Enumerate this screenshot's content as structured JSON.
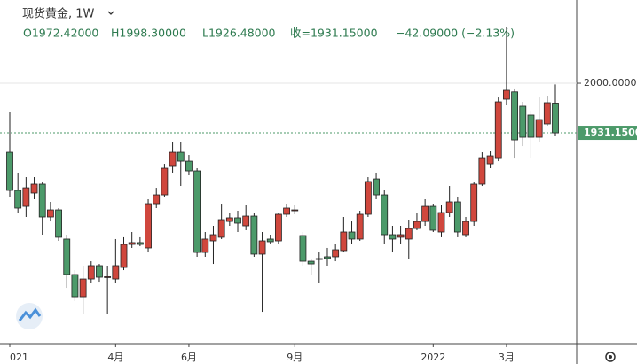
{
  "chart_data": {
    "type": "candlestick",
    "title": "现货黄金, 1W",
    "header": {
      "open": {
        "value": 1972.42,
        "label": "O1972.42000"
      },
      "high": {
        "value": 1998.3,
        "label": "H1998.30000"
      },
      "low": {
        "value": 1926.48,
        "label": "L1926.48000"
      },
      "close": {
        "value": 1931.15,
        "label": "收=1931.15000"
      },
      "change": {
        "value": -42.09,
        "label": "−42.09000 (−2.13%)"
      }
    },
    "categories": [
      "021",
      null,
      null,
      null,
      null,
      null,
      null,
      null,
      null,
      null,
      null,
      null,
      null,
      "4月",
      null,
      null,
      null,
      null,
      null,
      null,
      null,
      null,
      "6月",
      null,
      null,
      null,
      null,
      null,
      null,
      null,
      null,
      null,
      null,
      null,
      null,
      "9月",
      null,
      null,
      null,
      null,
      null,
      null,
      null,
      null,
      null,
      null,
      null,
      null,
      null,
      null,
      null,
      null,
      "2022",
      null,
      null,
      null,
      null,
      null,
      null,
      null,
      null,
      "3月",
      null,
      null,
      null,
      null,
      null,
      null
    ],
    "open": [
      1904.1,
      1851.3,
      1829.1,
      1847.6,
      1859.9,
      1814.4,
      1824.2,
      1783.7,
      1734.5,
      1703.7,
      1728.3,
      1746.8,
      1730.8,
      1728.3,
      1744.3,
      1776.3,
      1778.8,
      1771.4,
      1832.8,
      1845.1,
      1885.7,
      1904.1,
      1891.8,
      1878.3,
      1765.2,
      1781.2,
      1786.2,
      1808.2,
      1813.2,
      1802.1,
      1815.6,
      1762.8,
      1783.7,
      1781.2,
      1818.1,
      1823.0,
      1788.6,
      1752.9,
      1755.4,
      1759.1,
      1759.1,
      1767.7,
      1793.5,
      1783.7,
      1818.1,
      1867.2,
      1845.1,
      1789.8,
      1786.2,
      1783.7,
      1798.4,
      1808.2,
      1829.1,
      1793.5,
      1820.5,
      1835.3,
      1789.8,
      1808.2,
      1859.9,
      1888.1,
      1896.7,
      1977.9,
      1988.0,
      1968.1,
      1955.8,
      1925.0,
      1943.5,
      1972.42
    ],
    "high": [
      1959.5,
      1875.9,
      1869.7,
      1869.7,
      1863.6,
      1835.3,
      1826.7,
      1789.8,
      1740.6,
      1746.8,
      1752.9,
      1749.2,
      1746.8,
      1783.7,
      1786.2,
      1793.5,
      1786.2,
      1839.0,
      1854.9,
      1888.1,
      1918.9,
      1918.9,
      1900.4,
      1882.0,
      1793.5,
      1802.1,
      1832.8,
      1820.5,
      1823.0,
      1830.4,
      1820.5,
      1793.5,
      1789.8,
      1820.5,
      1832.8,
      1830.4,
      1793.5,
      1755.4,
      1765.2,
      1771.4,
      1777.5,
      1814.4,
      1808.2,
      1823.0,
      1869.7,
      1875.9,
      1851.3,
      1802.1,
      1802.1,
      1810.7,
      1820.5,
      1839.0,
      1832.8,
      1830.4,
      1857.4,
      1842.7,
      1814.4,
      1863.6,
      1904.1,
      1906.6,
      1980.3,
      2078.7,
      1992.7,
      1974.2,
      1961.9,
      1980.3,
      1982.8,
      1998.3
    ],
    "low": [
      1842.7,
      1820.5,
      1814.4,
      1839.0,
      1789.8,
      1808.2,
      1781.2,
      1716.0,
      1697.6,
      1679.2,
      1722.2,
      1724.6,
      1679.2,
      1722.2,
      1740.6,
      1771.4,
      1773.8,
      1765.2,
      1826.7,
      1842.7,
      1875.9,
      1857.4,
      1872.2,
      1759.1,
      1759.1,
      1749.2,
      1783.7,
      1802.1,
      1793.5,
      1796.0,
      1759.1,
      1682.8,
      1776.3,
      1776.3,
      1814.4,
      1818.1,
      1746.8,
      1734.5,
      1722.2,
      1746.8,
      1752.9,
      1765.2,
      1777.5,
      1781.2,
      1814.4,
      1839.0,
      1777.5,
      1765.2,
      1777.5,
      1756.6,
      1796.0,
      1802.1,
      1793.5,
      1786.2,
      1814.4,
      1786.2,
      1786.2,
      1802.1,
      1857.4,
      1882.0,
      1891.8,
      1970.5,
      1896.7,
      1912.7,
      1896.7,
      1918.9,
      1941.0,
      1926.48
    ],
    "close": [
      1851.3,
      1826.7,
      1854.9,
      1859.9,
      1814.4,
      1824.2,
      1786.2,
      1734.5,
      1703.7,
      1728.3,
      1746.8,
      1730.8,
      1731.5,
      1746.8,
      1776.3,
      1778.8,
      1776.3,
      1832.8,
      1845.1,
      1882.0,
      1904.1,
      1891.8,
      1878.3,
      1765.2,
      1783.7,
      1789.8,
      1810.7,
      1813.2,
      1805.8,
      1815.6,
      1762.8,
      1781.2,
      1780.0,
      1818.1,
      1826.7,
      1824.2,
      1752.9,
      1749.2,
      1756.6,
      1756.6,
      1768.9,
      1793.5,
      1783.7,
      1818.1,
      1863.6,
      1845.1,
      1789.8,
      1783.7,
      1789.8,
      1798.4,
      1808.2,
      1829.1,
      1796.0,
      1820.5,
      1835.3,
      1793.5,
      1808.2,
      1859.9,
      1896.7,
      1899.2,
      1974.2,
      1990.2,
      1921.3,
      1925.0,
      1925.0,
      1949.6,
      1973.0,
      1931.15
    ],
    "up_color": "#d0473d",
    "down_color": "#4c9a6a",
    "ylim": [
      1638.6,
      2115.6
    ],
    "yticks": [
      {
        "value": 2000,
        "label": "2000.00000"
      }
    ],
    "last_price": {
      "value": 1931.15,
      "label": "1931.15000"
    },
    "grid": true
  }
}
